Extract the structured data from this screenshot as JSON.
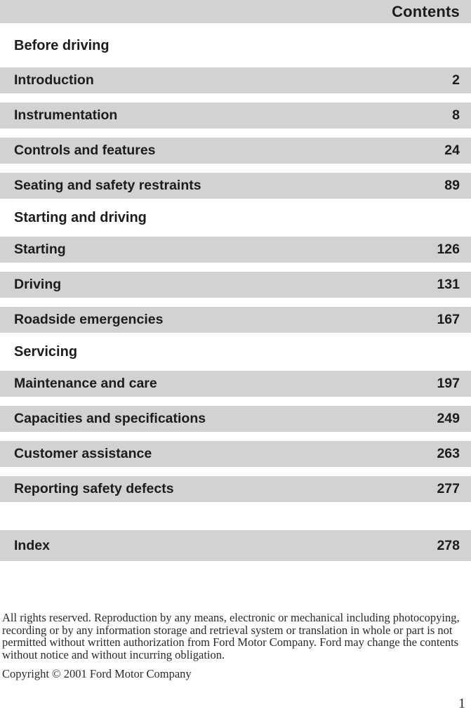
{
  "header": {
    "title": "Contents"
  },
  "toc": {
    "sections": [
      {
        "header": "Before driving",
        "entries": [
          {
            "label": "Introduction",
            "page": "2"
          },
          {
            "label": "Instrumentation",
            "page": "8"
          },
          {
            "label": "Controls and features",
            "page": "24"
          },
          {
            "label": "Seating and safety restraints",
            "page": "89"
          }
        ]
      },
      {
        "header": "Starting and driving",
        "entries": [
          {
            "label": "Starting",
            "page": "126"
          },
          {
            "label": "Driving",
            "page": "131"
          },
          {
            "label": "Roadside emergencies",
            "page": "167"
          }
        ]
      },
      {
        "header": "Servicing",
        "entries": [
          {
            "label": "Maintenance and care",
            "page": "197"
          },
          {
            "label": "Capacities and specifications",
            "page": "249"
          },
          {
            "label": "Customer assistance",
            "page": "263"
          },
          {
            "label": "Reporting safety defects",
            "page": "277"
          }
        ]
      }
    ],
    "index_entry": {
      "label": "Index",
      "page": "278"
    }
  },
  "footer": {
    "legal": "All rights reserved. Reproduction by any means, electronic or mechanical including photocopying, recording or by any information storage and retrieval system or translation in whole or part is not permitted without written authorization from Ford Motor Company. Ford may change the contents without notice and without incurring obligation.",
    "copyright": "Copyright © 2001 Ford Motor Company"
  },
  "page": {
    "number": "1"
  },
  "colors": {
    "row_bg": "#d2d2d2",
    "bar_bg": "#d2d2d2",
    "text": "#1c1c1e",
    "footer_text": "#2a2a2a",
    "page_bg": "#ffffff"
  }
}
